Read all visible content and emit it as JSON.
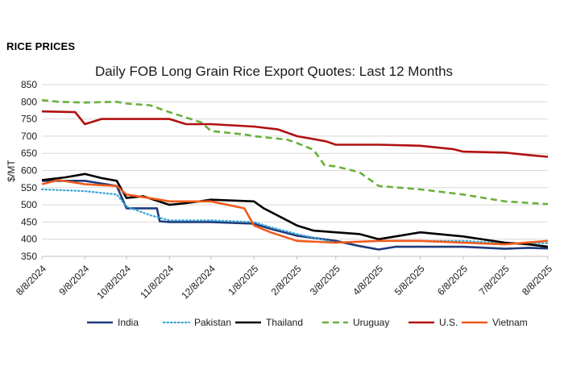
{
  "heading": "RICE PRICES",
  "chart_data": {
    "type": "line",
    "title": "Daily FOB Long Grain Rice Export Quotes: Last 12 Months",
    "ylabel": "$/MT",
    "xlabel": "",
    "ylim": [
      350,
      850
    ],
    "yticks": [
      350,
      400,
      450,
      500,
      550,
      600,
      650,
      700,
      750,
      800,
      850
    ],
    "xticks": [
      "8/8/2024",
      "9/8/2024",
      "10/8/2024",
      "11/8/2024",
      "12/8/2024",
      "1/8/2025",
      "2/8/2025",
      "3/8/2025",
      "4/8/2025",
      "5/8/2025",
      "6/8/2025",
      "7/8/2025",
      "8/8/2025"
    ],
    "grid": "horizontal",
    "legend": "bottom",
    "series": [
      {
        "name": "India",
        "color": "#1f3a7a",
        "dash": "solid",
        "points": [
          [
            "8/8/2024",
            570
          ],
          [
            "9/8/2024",
            570
          ],
          [
            "10/1/2024",
            555
          ],
          [
            "10/8/2024",
            490
          ],
          [
            "10/30/2024",
            490
          ],
          [
            "11/1/2024",
            452
          ],
          [
            "11/8/2024",
            450
          ],
          [
            "12/8/2024",
            450
          ],
          [
            "1/8/2025",
            445
          ],
          [
            "1/20/2025",
            430
          ],
          [
            "2/8/2025",
            410
          ],
          [
            "3/8/2025",
            395
          ],
          [
            "3/25/2025",
            380
          ],
          [
            "4/8/2025",
            370
          ],
          [
            "4/20/2025",
            378
          ],
          [
            "5/8/2025",
            378
          ],
          [
            "6/8/2025",
            378
          ],
          [
            "7/8/2025",
            372
          ],
          [
            "7/25/2025",
            375
          ],
          [
            "8/8/2025",
            373
          ]
        ]
      },
      {
        "name": "Pakistan",
        "color": "#3aa6d8",
        "dash": "dotted",
        "points": [
          [
            "8/8/2024",
            545
          ],
          [
            "9/8/2024",
            540
          ],
          [
            "10/1/2024",
            530
          ],
          [
            "10/8/2024",
            495
          ],
          [
            "10/25/2024",
            470
          ],
          [
            "11/8/2024",
            455
          ],
          [
            "12/8/2024",
            455
          ],
          [
            "1/8/2025",
            450
          ],
          [
            "1/20/2025",
            435
          ],
          [
            "2/8/2025",
            415
          ],
          [
            "3/8/2025",
            390
          ],
          [
            "4/8/2025",
            395
          ],
          [
            "5/8/2025",
            395
          ],
          [
            "6/8/2025",
            395
          ],
          [
            "7/8/2025",
            388
          ],
          [
            "8/8/2025",
            388
          ]
        ]
      },
      {
        "name": "Thailand",
        "color": "#000000",
        "dash": "solid",
        "points": [
          [
            "8/8/2024",
            572
          ],
          [
            "8/25/2024",
            580
          ],
          [
            "9/8/2024",
            590
          ],
          [
            "9/20/2024",
            578
          ],
          [
            "10/1/2024",
            570
          ],
          [
            "10/8/2024",
            520
          ],
          [
            "10/20/2024",
            525
          ],
          [
            "11/8/2024",
            500
          ],
          [
            "11/20/2024",
            505
          ],
          [
            "12/8/2024",
            515
          ],
          [
            "1/8/2025",
            510
          ],
          [
            "1/15/2025",
            490
          ],
          [
            "2/8/2025",
            440
          ],
          [
            "2/20/2025",
            425
          ],
          [
            "3/8/2025",
            420
          ],
          [
            "3/25/2025",
            415
          ],
          [
            "4/8/2025",
            400
          ],
          [
            "4/20/2025",
            408
          ],
          [
            "5/8/2025",
            420
          ],
          [
            "6/8/2025",
            408
          ],
          [
            "7/8/2025",
            390
          ],
          [
            "7/25/2025",
            385
          ],
          [
            "8/8/2025",
            378
          ]
        ]
      },
      {
        "name": "Uruguay",
        "color": "#6ab03a",
        "dash": "dashed",
        "points": [
          [
            "8/8/2024",
            805
          ],
          [
            "8/20/2024",
            800
          ],
          [
            "9/8/2024",
            798
          ],
          [
            "10/1/2024",
            800
          ],
          [
            "10/8/2024",
            795
          ],
          [
            "10/25/2024",
            790
          ],
          [
            "11/8/2024",
            770
          ],
          [
            "12/1/2024",
            740
          ],
          [
            "12/8/2024",
            715
          ],
          [
            "1/1/2025",
            705
          ],
          [
            "1/8/2025",
            700
          ],
          [
            "2/1/2025",
            690
          ],
          [
            "2/8/2025",
            680
          ],
          [
            "2/20/2025",
            660
          ],
          [
            "2/28/2025",
            615
          ],
          [
            "3/8/2025",
            612
          ],
          [
            "3/25/2025",
            595
          ],
          [
            "4/8/2025",
            555
          ],
          [
            "5/8/2025",
            545
          ],
          [
            "6/8/2025",
            530
          ],
          [
            "7/8/2025",
            510
          ],
          [
            "8/8/2025",
            502
          ]
        ]
      },
      {
        "name": "U.S.",
        "color": "#b01010",
        "dash": "solid",
        "points": [
          [
            "8/8/2024",
            772
          ],
          [
            "9/1/2024",
            770
          ],
          [
            "9/8/2024",
            735
          ],
          [
            "9/20/2024",
            750
          ],
          [
            "10/8/2024",
            750
          ],
          [
            "11/8/2024",
            750
          ],
          [
            "11/20/2024",
            735
          ],
          [
            "12/8/2024",
            735
          ],
          [
            "1/8/2025",
            728
          ],
          [
            "1/25/2025",
            720
          ],
          [
            "2/8/2025",
            700
          ],
          [
            "3/1/2025",
            685
          ],
          [
            "3/8/2025",
            675
          ],
          [
            "4/8/2025",
            675
          ],
          [
            "5/8/2025",
            672
          ],
          [
            "6/1/2025",
            662
          ],
          [
            "6/8/2025",
            655
          ],
          [
            "7/8/2025",
            652
          ],
          [
            "7/25/2025",
            645
          ],
          [
            "8/8/2025",
            640
          ]
        ]
      },
      {
        "name": "Vietnam",
        "color": "#f05a1c",
        "dash": "solid",
        "points": [
          [
            "8/8/2024",
            560
          ],
          [
            "8/20/2024",
            572
          ],
          [
            "9/8/2024",
            560
          ],
          [
            "10/1/2024",
            555
          ],
          [
            "10/8/2024",
            530
          ],
          [
            "11/1/2024",
            515
          ],
          [
            "11/8/2024",
            510
          ],
          [
            "12/8/2024",
            510
          ],
          [
            "1/1/2025",
            490
          ],
          [
            "1/8/2025",
            440
          ],
          [
            "1/20/2025",
            420
          ],
          [
            "2/8/2025",
            395
          ],
          [
            "3/8/2025",
            390
          ],
          [
            "4/8/2025",
            395
          ],
          [
            "5/8/2025",
            395
          ],
          [
            "6/8/2025",
            390
          ],
          [
            "7/8/2025",
            385
          ],
          [
            "8/8/2025",
            395
          ]
        ]
      }
    ]
  }
}
